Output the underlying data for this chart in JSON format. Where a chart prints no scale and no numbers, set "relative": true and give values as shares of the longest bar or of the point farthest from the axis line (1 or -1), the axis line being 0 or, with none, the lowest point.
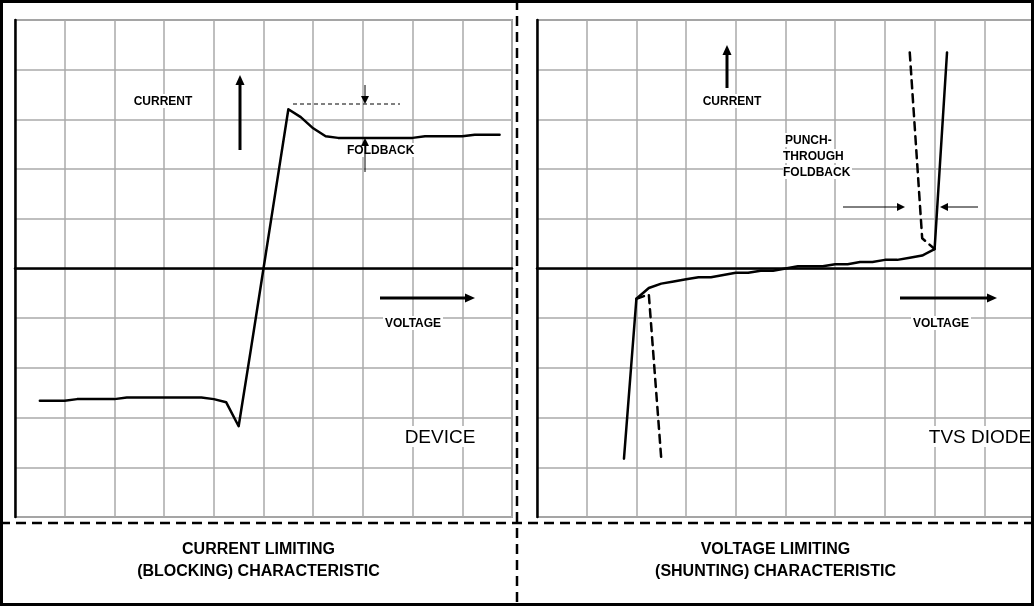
{
  "chart_data": [
    {
      "type": "line",
      "relative": true,
      "title": "CURRENT LIMITING\n(BLOCKING) CHARACTERISTIC",
      "grid": true,
      "tick_labels": false,
      "marker": "none",
      "categories": [
        null,
        null,
        null,
        null,
        null,
        null,
        null,
        null,
        null,
        null,
        null,
        null,
        null,
        null,
        null,
        null,
        null,
        null,
        null,
        null,
        null,
        null,
        null,
        null,
        null,
        null,
        null,
        null,
        null,
        null,
        null,
        null,
        null,
        null,
        null,
        null,
        null,
        null,
        null,
        null,
        null
      ],
      "annotations": [
        "CURRENT",
        "FOLDBACK",
        "VOLTAGE",
        "DEVICE"
      ],
      "series": [
        {
          "color": "#000000",
          "line_style": "solid",
          "values": [
            null,
            null,
            -0.83,
            -0.83,
            -0.83,
            -0.82,
            -0.82,
            -0.82,
            -0.82,
            -0.81,
            -0.81,
            -0.81,
            -0.81,
            -0.81,
            -0.81,
            -0.81,
            -0.82,
            -0.84,
            -0.99,
            -0.5,
            0,
            0.5,
            1.0,
            0.95,
            0.88,
            0.83,
            0.82,
            0.82,
            0.82,
            0.82,
            0.82,
            0.82,
            0.82,
            0.83,
            0.83,
            0.83,
            0.83,
            0.84,
            0.84,
            0.84,
            null
          ]
        }
      ]
    },
    {
      "type": "line",
      "relative": true,
      "title": "VOLTAGE LIMITING\n(SHUNTING) CHARACTERISTIC",
      "grid": true,
      "tick_labels": false,
      "marker": "none",
      "categories": [
        null,
        null,
        null,
        null,
        null,
        null,
        null,
        null,
        null,
        null,
        null,
        null,
        null,
        null,
        null,
        null,
        null,
        null,
        null,
        null,
        null,
        null,
        null,
        null,
        null,
        null,
        null,
        null,
        null,
        null,
        null,
        null,
        null,
        null,
        null,
        null,
        null,
        null,
        null,
        null,
        null
      ],
      "annotations": [
        "CURRENT",
        "PUNCH-\nTHROUGH\nFOLDBACK",
        "VOLTAGE",
        "TVS DIODE"
      ],
      "series": [
        {
          "color": "#000000",
          "line_style": "solid",
          "values": [
            null,
            null,
            null,
            null,
            null,
            null,
            null,
            -0.88,
            -0.14,
            -0.09,
            -0.07,
            -0.06,
            -0.05,
            -0.04,
            -0.04,
            -0.03,
            -0.02,
            -0.02,
            -0.01,
            -0.01,
            0,
            0.01,
            0.01,
            0.01,
            0.02,
            0.02,
            0.03,
            0.03,
            0.04,
            0.04,
            0.05,
            0.06,
            0.09,
            1.0,
            null,
            null,
            null,
            null,
            null,
            null,
            null
          ]
        },
        {
          "color": "#000000",
          "line_style": "dashed",
          "values": [
            null,
            null,
            null,
            null,
            null,
            null,
            null,
            null,
            -0.14,
            -0.12,
            -0.88,
            null,
            null,
            null,
            null,
            null,
            null,
            null,
            null,
            null,
            null,
            null,
            null,
            null,
            null,
            null,
            null,
            null,
            null,
            null,
            1.0,
            0.14,
            0.09,
            null,
            null,
            null,
            null,
            null,
            null,
            null,
            null
          ]
        }
      ]
    }
  ]
}
